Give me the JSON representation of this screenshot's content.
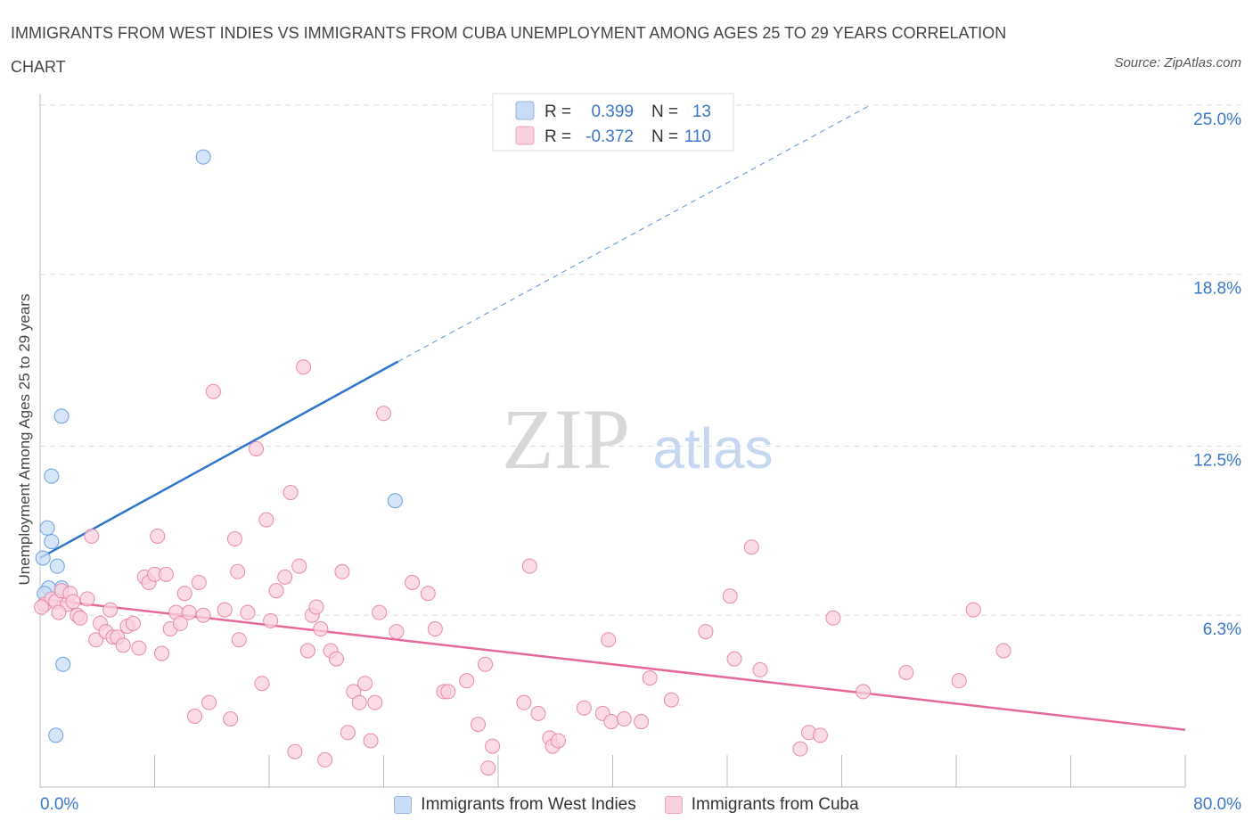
{
  "title": "IMMIGRANTS FROM WEST INDIES VS IMMIGRANTS FROM CUBA UNEMPLOYMENT AMONG AGES 25 TO 29 YEARS CORRELATION CHART",
  "source": "Source: ZipAtlas.com",
  "watermark": {
    "zip": "ZIP",
    "atlas": "atlas"
  },
  "colors": {
    "blue": "#6a9fe0",
    "blue_fill": "#c9dcf7",
    "blue_line": "#2f75d0",
    "pink": "#e889a8",
    "pink_fill": "#f9d0dd",
    "pink_line": "#e4689a",
    "axis_label": "#3a77c9",
    "grid": "#dddddd"
  },
  "legend_top": {
    "r_label": "R =",
    "n_label": "N =",
    "rows": [
      {
        "series": "blue",
        "r": "0.399",
        "n": "13"
      },
      {
        "series": "pink",
        "r": "-0.372",
        "n": "110"
      }
    ]
  },
  "chart_data": {
    "type": "scatter",
    "title": "IMMIGRANTS FROM WEST INDIES VS IMMIGRANTS FROM CUBA UNEMPLOYMENT AMONG AGES 25 TO 29 YEARS CORRELATION CHART",
    "xlabel": "",
    "ylabel": "Unemployment Among Ages 25 to 29 years",
    "xlim": [
      0,
      80
    ],
    "ylim": [
      0,
      25
    ],
    "x_tick_labels": [
      {
        "value": 0,
        "label": "0.0%"
      },
      {
        "value": 80,
        "label": "80.0%"
      }
    ],
    "y_tick_labels": [
      {
        "value": 6.3,
        "label": "6.3%"
      },
      {
        "value": 12.5,
        "label": "12.5%"
      },
      {
        "value": 18.8,
        "label": "18.8%"
      },
      {
        "value": 25.0,
        "label": "25.0%"
      }
    ],
    "grid": true,
    "legend_position": "bottom",
    "series": [
      {
        "name": "Immigrants from West Indies",
        "color": "#6a9fe0",
        "r": 0.399,
        "n": 13,
        "trend": {
          "x0": 0,
          "y0": 8.4,
          "x1": 25,
          "y1": 15.6,
          "dash_to_x": 58,
          "dash_to_y": 25.0
        },
        "points": [
          [
            11.4,
            23.1
          ],
          [
            1.5,
            13.6
          ],
          [
            0.8,
            11.4
          ],
          [
            0.5,
            9.5
          ],
          [
            0.8,
            9.0
          ],
          [
            1.2,
            8.1
          ],
          [
            0.2,
            8.4
          ],
          [
            1.5,
            7.3
          ],
          [
            0.6,
            7.3
          ],
          [
            0.3,
            7.1
          ],
          [
            24.8,
            10.5
          ],
          [
            1.6,
            4.5
          ],
          [
            1.1,
            1.9
          ]
        ]
      },
      {
        "name": "Immigrants from Cuba",
        "color": "#e889a8",
        "r": -0.372,
        "n": 110,
        "trend": {
          "x0": 0,
          "y0": 6.9,
          "x1": 80,
          "y1": 2.1
        },
        "points": [
          [
            0.3,
            6.7
          ],
          [
            0.8,
            6.9
          ],
          [
            1.1,
            6.8
          ],
          [
            1.5,
            7.2
          ],
          [
            1.9,
            6.7
          ],
          [
            2.1,
            7.1
          ],
          [
            2.6,
            6.3
          ],
          [
            2.8,
            6.2
          ],
          [
            3.3,
            6.9
          ],
          [
            3.6,
            9.2
          ],
          [
            3.9,
            5.4
          ],
          [
            4.2,
            6.0
          ],
          [
            4.6,
            5.7
          ],
          [
            4.9,
            6.5
          ],
          [
            5.1,
            5.5
          ],
          [
            5.4,
            5.5
          ],
          [
            5.8,
            5.2
          ],
          [
            6.1,
            5.9
          ],
          [
            6.5,
            6.0
          ],
          [
            6.9,
            5.1
          ],
          [
            7.3,
            7.7
          ],
          [
            7.6,
            7.5
          ],
          [
            8.0,
            7.8
          ],
          [
            8.2,
            9.2
          ],
          [
            8.5,
            4.9
          ],
          [
            8.8,
            7.8
          ],
          [
            9.1,
            5.8
          ],
          [
            9.5,
            6.4
          ],
          [
            9.8,
            6.0
          ],
          [
            10.1,
            7.1
          ],
          [
            10.4,
            6.4
          ],
          [
            10.8,
            2.6
          ],
          [
            11.1,
            7.5
          ],
          [
            11.4,
            6.3
          ],
          [
            11.8,
            3.1
          ],
          [
            12.1,
            14.5
          ],
          [
            12.9,
            6.5
          ],
          [
            13.3,
            2.5
          ],
          [
            13.6,
            9.1
          ],
          [
            13.8,
            7.9
          ],
          [
            13.9,
            5.4
          ],
          [
            14.5,
            6.4
          ],
          [
            15.1,
            12.4
          ],
          [
            15.5,
            3.8
          ],
          [
            15.8,
            9.8
          ],
          [
            16.1,
            6.1
          ],
          [
            16.5,
            7.2
          ],
          [
            17.1,
            7.7
          ],
          [
            17.5,
            10.8
          ],
          [
            17.8,
            1.3
          ],
          [
            18.1,
            8.1
          ],
          [
            18.4,
            15.4
          ],
          [
            18.7,
            5.0
          ],
          [
            19.0,
            6.3
          ],
          [
            19.3,
            6.6
          ],
          [
            19.6,
            5.8
          ],
          [
            19.9,
            1.0
          ],
          [
            20.3,
            5.0
          ],
          [
            20.7,
            4.7
          ],
          [
            21.1,
            7.9
          ],
          [
            21.5,
            2.0
          ],
          [
            21.9,
            3.5
          ],
          [
            22.3,
            3.1
          ],
          [
            22.7,
            3.8
          ],
          [
            23.1,
            1.7
          ],
          [
            23.4,
            3.1
          ],
          [
            23.7,
            6.4
          ],
          [
            24.0,
            13.7
          ],
          [
            24.9,
            5.7
          ],
          [
            26.0,
            7.5
          ],
          [
            27.1,
            7.1
          ],
          [
            27.6,
            5.8
          ],
          [
            28.2,
            3.5
          ],
          [
            28.5,
            3.5
          ],
          [
            29.8,
            3.9
          ],
          [
            30.6,
            2.3
          ],
          [
            31.1,
            4.5
          ],
          [
            31.3,
            0.7
          ],
          [
            31.6,
            1.5
          ],
          [
            33.8,
            3.1
          ],
          [
            34.2,
            8.1
          ],
          [
            34.8,
            2.7
          ],
          [
            35.6,
            1.8
          ],
          [
            35.8,
            1.5
          ],
          [
            36.2,
            1.7
          ],
          [
            38.0,
            2.9
          ],
          [
            39.3,
            2.7
          ],
          [
            39.7,
            5.4
          ],
          [
            39.9,
            2.4
          ],
          [
            40.8,
            2.5
          ],
          [
            42.0,
            2.4
          ],
          [
            42.6,
            4.0
          ],
          [
            44.1,
            3.2
          ],
          [
            46.5,
            5.7
          ],
          [
            48.2,
            7.0
          ],
          [
            48.5,
            4.7
          ],
          [
            49.7,
            8.8
          ],
          [
            50.3,
            4.3
          ],
          [
            53.1,
            1.4
          ],
          [
            53.7,
            2.0
          ],
          [
            54.5,
            1.9
          ],
          [
            55.4,
            6.2
          ],
          [
            57.5,
            3.5
          ],
          [
            60.5,
            4.2
          ],
          [
            64.2,
            3.9
          ],
          [
            65.2,
            6.5
          ],
          [
            67.3,
            5.0
          ],
          [
            0.1,
            6.6
          ],
          [
            1.3,
            6.4
          ],
          [
            2.3,
            6.8
          ]
        ]
      }
    ]
  },
  "legend_bottom": [
    {
      "label": "Immigrants from West Indies",
      "series": "blue"
    },
    {
      "label": "Immigrants from Cuba",
      "series": "pink"
    }
  ]
}
